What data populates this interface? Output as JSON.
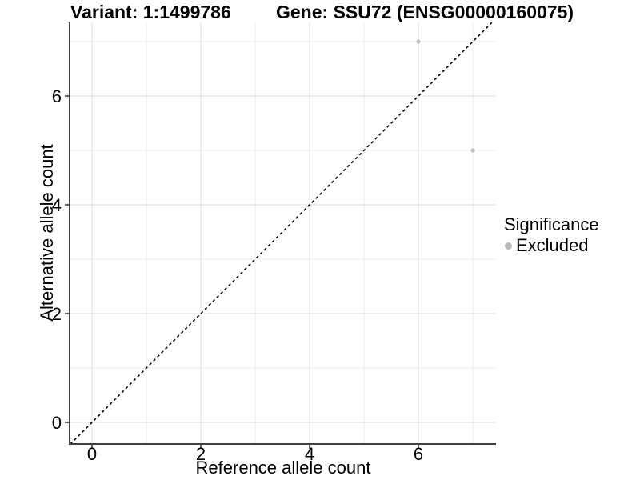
{
  "titles": {
    "variant": "Variant: 1:1499786",
    "gene": "Gene: SSU72 (ENSG00000160075)"
  },
  "axes": {
    "x_label": "Reference allele count",
    "y_label": "Alternative allele count"
  },
  "legend": {
    "title": "Significance",
    "position": "right",
    "items": [
      {
        "label": "Excluded",
        "color": "#b8b8b8"
      }
    ]
  },
  "chart_data": {
    "type": "scatter",
    "title": "Variant: 1:1499786 / Gene: SSU72 (ENSG00000160075)",
    "xlabel": "Reference allele count",
    "ylabel": "Alternative allele count",
    "xlim": [
      -0.4,
      7.4
    ],
    "ylim": [
      -0.4,
      7.35
    ],
    "x_ticks": [
      0,
      2,
      4,
      6
    ],
    "y_ticks": [
      0,
      2,
      4,
      6
    ],
    "x_minor_ticks": [
      1,
      3,
      5,
      7
    ],
    "y_minor_ticks": [
      1,
      3,
      5,
      7
    ],
    "grid": true,
    "series": [
      {
        "name": "Excluded",
        "color": "#bfbfbf",
        "points": [
          {
            "x": 6,
            "y": 7
          },
          {
            "x": 7,
            "y": 5
          }
        ]
      }
    ],
    "reference_line": {
      "kind": "identity",
      "equation": "y = x",
      "style": "dashed",
      "color": "#000000"
    },
    "colors": {
      "axis_line": "#404040",
      "tick": "#333333",
      "tick_label": "#000000",
      "grid_major": "#e4e4e4",
      "grid_minor": "#f1f1f1",
      "panel_background": "#ffffff"
    }
  }
}
